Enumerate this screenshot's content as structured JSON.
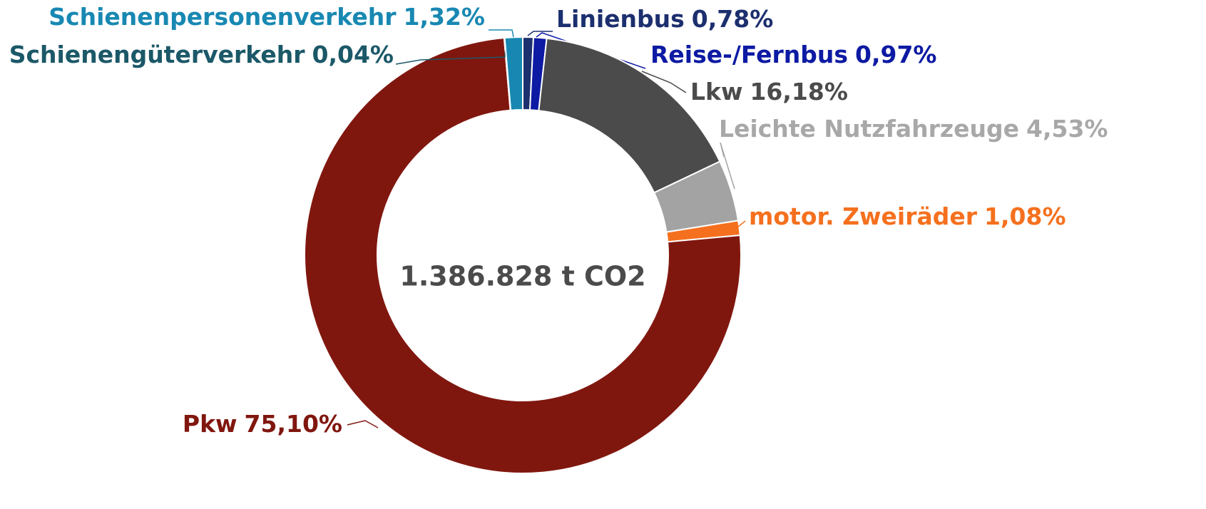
{
  "chart_data": {
    "type": "donut",
    "center_label": "1.386.828 t CO2",
    "categories": [
      "Linienbus",
      "Reise-/Fernbus",
      "Lkw",
      "Leichte Nutzfahrzeuge",
      "motor. Zweiräder",
      "Pkw",
      "Schienengüterverkehr",
      "Schienenpersonenverkehr"
    ],
    "values": [
      0.78,
      0.97,
      16.18,
      4.53,
      1.08,
      75.1,
      0.04,
      1.32
    ],
    "value_labels": [
      "0,78%",
      "0,97%",
      "16,18%",
      "4,53%",
      "1,08%",
      "75,10%",
      "0,04%",
      "1,32%"
    ],
    "colors": [
      "#1c2f6e",
      "#0d1aa3",
      "#4b4b4b",
      "#a3a3a3",
      "#f5701e",
      "#80170f",
      "#1b5868",
      "#1888b2"
    ]
  }
}
